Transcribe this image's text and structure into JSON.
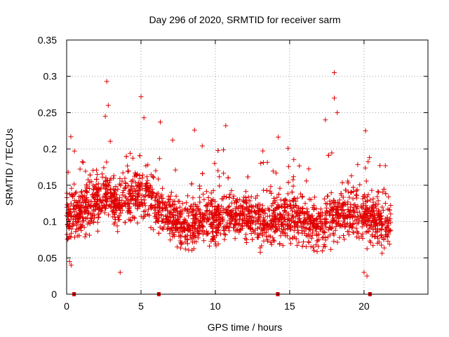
{
  "chart_data": {
    "type": "scatter",
    "title": "Day 296 of 2020, SRMTID for receiver sarm",
    "xlabel": "GPS time / hours",
    "ylabel": "SRMTID / TECUs",
    "xlim": [
      0,
      24.3
    ],
    "ylim": [
      0,
      0.35
    ],
    "grid": true,
    "point_style": "plus",
    "color": "#e00000",
    "x_ticks": [
      0,
      5,
      10,
      15,
      20
    ],
    "x_tick_labels": [
      "0",
      "5",
      "10",
      "15",
      "20"
    ],
    "y_ticks": [
      0,
      0.05,
      0.1,
      0.15,
      0.2,
      0.25,
      0.3,
      0.35
    ],
    "y_tick_labels": [
      "0",
      "0.05",
      "0.1",
      "0.15",
      "0.2",
      "0.25",
      "0.3",
      "0.35"
    ],
    "axis_markers_x": [
      0.5,
      6.2,
      14.2,
      20.4
    ],
    "series": [
      {
        "name": "SRMTID",
        "x_range": [
          0.0,
          21.8
        ],
        "mean_profile": [
          [
            0.0,
            0.11
          ],
          [
            1.0,
            0.115
          ],
          [
            2.0,
            0.13
          ],
          [
            2.7,
            0.14
          ],
          [
            3.5,
            0.12
          ],
          [
            4.5,
            0.135
          ],
          [
            5.2,
            0.14
          ],
          [
            6.0,
            0.125
          ],
          [
            7.0,
            0.1
          ],
          [
            8.0,
            0.095
          ],
          [
            9.0,
            0.1
          ],
          [
            10.0,
            0.105
          ],
          [
            11.0,
            0.11
          ],
          [
            12.0,
            0.105
          ],
          [
            13.0,
            0.1
          ],
          [
            14.0,
            0.105
          ],
          [
            15.0,
            0.11
          ],
          [
            16.0,
            0.1
          ],
          [
            17.0,
            0.095
          ],
          [
            18.0,
            0.11
          ],
          [
            19.0,
            0.115
          ],
          [
            20.0,
            0.11
          ],
          [
            21.0,
            0.1
          ],
          [
            21.8,
            0.095
          ]
        ],
        "highlighted_values": [
          {
            "x": 2.7,
            "y": 0.293
          },
          {
            "x": 2.8,
            "y": 0.26
          },
          {
            "x": 2.6,
            "y": 0.245
          },
          {
            "x": 5.0,
            "y": 0.272
          },
          {
            "x": 5.2,
            "y": 0.243
          },
          {
            "x": 18.0,
            "y": 0.305
          },
          {
            "x": 18.0,
            "y": 0.27
          },
          {
            "x": 18.2,
            "y": 0.25
          },
          {
            "x": 17.4,
            "y": 0.24
          },
          {
            "x": 8.6,
            "y": 0.226
          },
          {
            "x": 10.7,
            "y": 0.232
          },
          {
            "x": 6.3,
            "y": 0.237
          },
          {
            "x": 20.1,
            "y": 0.225
          },
          {
            "x": 20.0,
            "y": 0.03
          },
          {
            "x": 3.6,
            "y": 0.03
          },
          {
            "x": 20.2,
            "y": 0.025
          },
          {
            "x": 0.2,
            "y": 0.045
          },
          {
            "x": 0.3,
            "y": 0.04
          }
        ],
        "approx_point_count": 2600
      }
    ]
  }
}
